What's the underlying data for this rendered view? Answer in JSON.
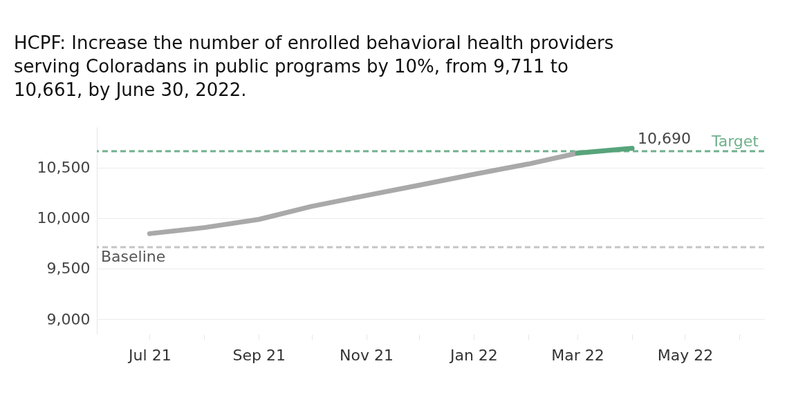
{
  "chart_data": {
    "type": "line",
    "title": "HCPF: Increase the number of enrolled behavioral health providers serving Coloradans in public programs by 10%, from 9,711 to 10,661, by June 30, 2022.",
    "x": [
      "2021-07",
      "2021-08",
      "2021-09",
      "2021-10",
      "2021-11",
      "2021-12",
      "2022-01",
      "2022-02",
      "2022-03",
      "2022-04"
    ],
    "series": [
      {
        "color": "#a9a9a9",
        "values": [
          9845,
          9905,
          9986,
          10115,
          10223,
          10324,
          10432,
          10534,
          10642,
          null
        ]
      },
      {
        "color": "#57a47b",
        "values": [
          null,
          null,
          null,
          null,
          null,
          null,
          null,
          null,
          10642,
          10690
        ],
        "value_labels": [
          null,
          null,
          null,
          null,
          null,
          null,
          null,
          null,
          null,
          "10,690"
        ]
      }
    ],
    "xlim": [
      "2021-06-01",
      "2022-06-15"
    ],
    "xticks": [
      {
        "value": "2021-07",
        "label": "Jul 21"
      },
      {
        "value": "2021-08",
        "label": null
      },
      {
        "value": "2021-09",
        "label": "Sep 21"
      },
      {
        "value": "2021-10",
        "label": null
      },
      {
        "value": "2021-11",
        "label": "Nov 21"
      },
      {
        "value": "2021-12",
        "label": null
      },
      {
        "value": "2022-01",
        "label": "Jan 22"
      },
      {
        "value": "2022-02",
        "label": null
      },
      {
        "value": "2022-03",
        "label": "Mar 22"
      },
      {
        "value": "2022-04",
        "label": null
      },
      {
        "value": "2022-05",
        "label": "May 22"
      },
      {
        "value": "2022-06",
        "label": null
      }
    ],
    "ylim": [
      8850,
      10900
    ],
    "yticks": [
      {
        "value": 9000,
        "label": "9,000"
      },
      {
        "value": 9500,
        "label": "9,500"
      },
      {
        "value": 10000,
        "label": "10,000"
      },
      {
        "value": 10500,
        "label": "10,500"
      }
    ],
    "ref_lines": [
      {
        "axis": "y",
        "value": 10661,
        "label": "Target",
        "color": "#6fb18c",
        "line_style": "dashed"
      },
      {
        "axis": "y",
        "value": 9711,
        "label": "Baseline",
        "color": "#c4c4c4",
        "line_style": "dashed"
      }
    ],
    "grid": "y",
    "line_style": "solid",
    "marker": "none"
  }
}
